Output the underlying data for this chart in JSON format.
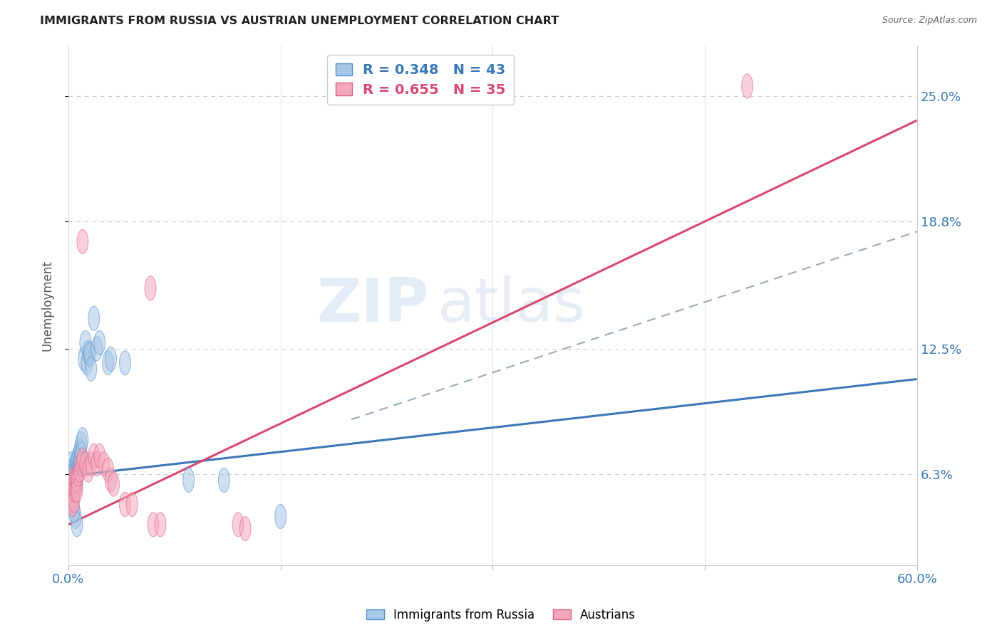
{
  "title": "IMMIGRANTS FROM RUSSIA VS AUSTRIAN UNEMPLOYMENT CORRELATION CHART",
  "source": "Source: ZipAtlas.com",
  "ylabel": "Unemployment",
  "ytick_labels": [
    "6.3%",
    "12.5%",
    "18.8%",
    "25.0%"
  ],
  "ytick_values": [
    0.063,
    0.125,
    0.188,
    0.25
  ],
  "xmin": 0.0,
  "xmax": 0.6,
  "ymin": 0.018,
  "ymax": 0.275,
  "watermark": "ZIPatlas",
  "blue_color": "#a8c8e8",
  "pink_color": "#f4a8bc",
  "blue_edge_color": "#5590c8",
  "pink_edge_color": "#e06080",
  "blue_line_color": "#3a78b8",
  "pink_line_color": "#d84870",
  "dashed_line_color": "#99aabb",
  "blue_scatter": [
    [
      0.002,
      0.068
    ],
    [
      0.002,
      0.062
    ],
    [
      0.003,
      0.065
    ],
    [
      0.003,
      0.06
    ],
    [
      0.003,
      0.058
    ],
    [
      0.004,
      0.064
    ],
    [
      0.004,
      0.06
    ],
    [
      0.004,
      0.056
    ],
    [
      0.005,
      0.068
    ],
    [
      0.005,
      0.063
    ],
    [
      0.005,
      0.06
    ],
    [
      0.005,
      0.057
    ],
    [
      0.006,
      0.07
    ],
    [
      0.006,
      0.065
    ],
    [
      0.006,
      0.062
    ],
    [
      0.006,
      0.058
    ],
    [
      0.007,
      0.072
    ],
    [
      0.007,
      0.068
    ],
    [
      0.007,
      0.065
    ],
    [
      0.008,
      0.075
    ],
    [
      0.008,
      0.07
    ],
    [
      0.009,
      0.078
    ],
    [
      0.009,
      0.073
    ],
    [
      0.01,
      0.08
    ],
    [
      0.011,
      0.12
    ],
    [
      0.012,
      0.128
    ],
    [
      0.013,
      0.118
    ],
    [
      0.014,
      0.123
    ],
    [
      0.015,
      0.122
    ],
    [
      0.016,
      0.115
    ],
    [
      0.018,
      0.14
    ],
    [
      0.02,
      0.125
    ],
    [
      0.022,
      0.128
    ],
    [
      0.028,
      0.118
    ],
    [
      0.03,
      0.12
    ],
    [
      0.04,
      0.118
    ],
    [
      0.005,
      0.042
    ],
    [
      0.006,
      0.038
    ],
    [
      0.085,
      0.06
    ],
    [
      0.15,
      0.042
    ],
    [
      0.003,
      0.048
    ],
    [
      0.004,
      0.045
    ],
    [
      0.11,
      0.06
    ]
  ],
  "pink_scatter": [
    [
      0.002,
      0.06
    ],
    [
      0.002,
      0.055
    ],
    [
      0.002,
      0.05
    ],
    [
      0.003,
      0.058
    ],
    [
      0.003,
      0.052
    ],
    [
      0.003,
      0.048
    ],
    [
      0.004,
      0.055
    ],
    [
      0.004,
      0.05
    ],
    [
      0.005,
      0.06
    ],
    [
      0.005,
      0.055
    ],
    [
      0.006,
      0.06
    ],
    [
      0.006,
      0.055
    ],
    [
      0.007,
      0.063
    ],
    [
      0.008,
      0.065
    ],
    [
      0.009,
      0.068
    ],
    [
      0.01,
      0.07
    ],
    [
      0.012,
      0.068
    ],
    [
      0.014,
      0.065
    ],
    [
      0.016,
      0.068
    ],
    [
      0.018,
      0.072
    ],
    [
      0.02,
      0.068
    ],
    [
      0.022,
      0.072
    ],
    [
      0.025,
      0.068
    ],
    [
      0.028,
      0.065
    ],
    [
      0.03,
      0.06
    ],
    [
      0.032,
      0.058
    ],
    [
      0.04,
      0.048
    ],
    [
      0.045,
      0.048
    ],
    [
      0.06,
      0.038
    ],
    [
      0.065,
      0.038
    ],
    [
      0.01,
      0.178
    ],
    [
      0.058,
      0.155
    ],
    [
      0.12,
      0.038
    ],
    [
      0.125,
      0.036
    ],
    [
      0.48,
      0.255
    ]
  ],
  "blue_line_x": [
    0.0,
    0.6
  ],
  "blue_line_y": [
    0.062,
    0.11
  ],
  "pink_line_x": [
    0.0,
    0.6
  ],
  "pink_line_y": [
    0.038,
    0.238
  ],
  "dashed_line_x": [
    0.2,
    0.6
  ],
  "dashed_line_y": [
    0.09,
    0.183
  ],
  "xtick_positions": [
    0.0,
    0.15,
    0.3,
    0.45,
    0.6
  ],
  "xtick_labels_show": [
    "0.0%",
    "",
    "",
    "",
    "60.0%"
  ]
}
